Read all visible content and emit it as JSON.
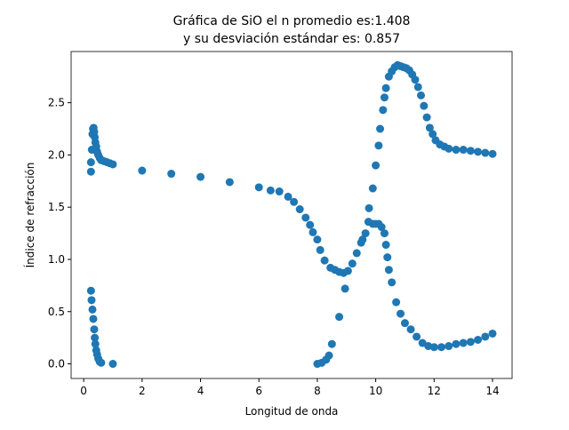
{
  "chart_data": {
    "type": "scatter",
    "title": [
      "Gráfica de SiO el n promedio es:1.408",
      "y su desviación estándar es: 0.857"
    ],
    "x_label": "Longitud de onda",
    "y_label": "Índice de refracción",
    "xlim": [
      -0.43,
      14.67
    ],
    "ylim": [
      -0.14,
      2.99
    ],
    "xticks": [
      0,
      2,
      4,
      6,
      8,
      10,
      12,
      14
    ],
    "yticks": [
      {
        "value": 0,
        "label": "0.0"
      },
      {
        "value": 0.5,
        "label": "0.5"
      },
      {
        "value": 1,
        "label": "1.0"
      },
      {
        "value": 1.5,
        "label": "1.5"
      },
      {
        "value": 2,
        "label": "2.0"
      },
      {
        "value": 2.5,
        "label": "2.5"
      }
    ],
    "series": [
      {
        "color": "#1f77b4",
        "x": [
          0.25,
          0.25,
          0.28,
          0.3,
          0.32,
          0.34,
          0.36,
          0.38,
          0.4,
          0.43,
          0.46,
          0.5,
          0.55,
          0.6,
          0.7,
          0.8,
          0.9,
          1.0,
          2,
          3,
          4,
          5,
          6,
          6.4,
          6.7,
          7,
          7.2,
          7.4,
          7.6,
          7.75,
          7.85,
          8,
          8.1,
          8.25,
          8.45,
          8.6,
          8.75,
          8.9,
          9.05,
          9.2,
          9.35,
          9.5,
          9.55,
          9.65,
          9.75,
          9.9,
          10.0,
          10.1,
          10.2,
          10.3,
          10.35,
          10.4,
          10.45,
          10.55,
          10.7,
          10.85,
          11,
          11.2,
          11.4,
          11.6,
          11.8,
          12,
          12.25,
          12.5,
          12.75,
          13,
          13.25,
          13.5,
          13.75,
          14,
          9.77,
          9.9,
          10.0,
          10.1,
          10.15,
          10.25,
          10.3,
          10.35,
          10.45,
          10.55,
          10.65,
          10.75,
          10.85,
          10.95,
          11.05,
          11.15,
          11.25,
          11.35,
          11.45,
          11.55,
          11.65,
          11.75,
          11.85,
          11.95,
          12.05,
          12.2,
          12.35,
          12.5,
          12.75,
          13,
          13.25,
          13.5,
          13.75,
          14,
          0.25,
          0.27,
          0.3,
          0.33,
          0.36,
          0.38,
          0.4,
          0.43,
          0.46,
          0.5,
          0.55,
          0.6,
          1,
          8,
          8.15,
          8.3,
          8.4,
          8.5,
          8.75,
          8.95
        ],
        "values": [
          1.84,
          1.93,
          2.05,
          2.2,
          2.25,
          2.26,
          2.22,
          2.17,
          2.12,
          2.08,
          2.03,
          2.0,
          1.97,
          1.95,
          1.94,
          1.93,
          1.92,
          1.91,
          1.85,
          1.82,
          1.79,
          1.74,
          1.69,
          1.66,
          1.65,
          1.6,
          1.55,
          1.48,
          1.4,
          1.33,
          1.26,
          1.19,
          1.09,
          0.99,
          0.92,
          0.9,
          0.88,
          0.87,
          0.89,
          0.96,
          1.06,
          1.16,
          1.19,
          1.25,
          1.36,
          1.34,
          1.34,
          1.34,
          1.31,
          1.25,
          1.14,
          1.02,
          0.9,
          0.78,
          0.59,
          0.48,
          0.39,
          0.33,
          0.26,
          0.2,
          0.17,
          0.16,
          0.16,
          0.17,
          0.19,
          0.2,
          0.21,
          0.23,
          0.26,
          0.29,
          1.49,
          1.68,
          1.9,
          2.09,
          2.25,
          2.43,
          2.55,
          2.64,
          2.75,
          2.8,
          2.84,
          2.86,
          2.85,
          2.84,
          2.83,
          2.81,
          2.77,
          2.72,
          2.65,
          2.57,
          2.47,
          2.36,
          2.26,
          2.2,
          2.14,
          2.1,
          2.08,
          2.06,
          2.05,
          2.05,
          2.04,
          2.03,
          2.02,
          2.01,
          0.7,
          0.61,
          0.52,
          0.43,
          0.33,
          0.25,
          0.19,
          0.13,
          0.09,
          0.05,
          0.02,
          0.01,
          0.0,
          0.0,
          0.01,
          0.04,
          0.08,
          0.19,
          0.45,
          0.72
        ]
      }
    ]
  }
}
